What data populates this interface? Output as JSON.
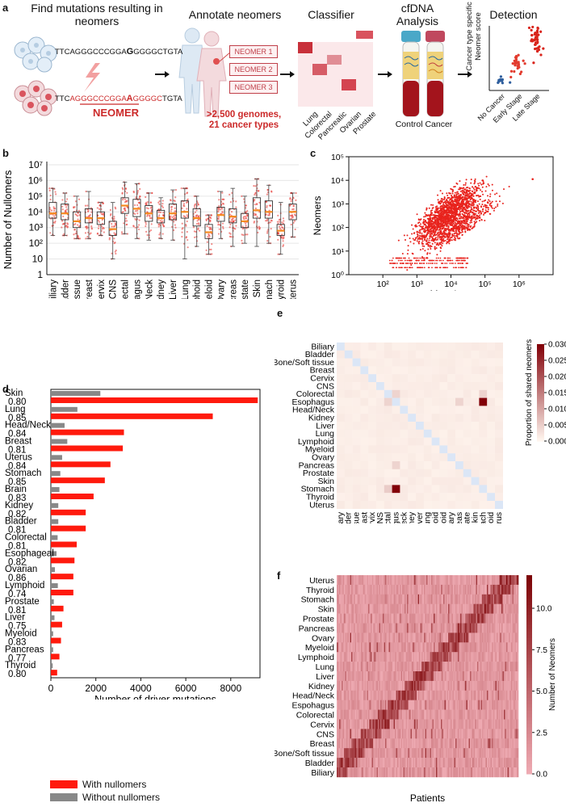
{
  "panel_a": {
    "label": "a",
    "step_find": "Find mutations resulting in neomers",
    "step_annotate": "Annotate neomers",
    "step_classifier": "Classifier",
    "step_cfdna": "cfDNA Analysis",
    "step_detection": "Detection",
    "seq_normal_pre": "TTCAGGGCCCGGA",
    "seq_normal_mut": "G",
    "seq_normal_post": "GGGGCTGTA",
    "seq_tumor_pre": "TTC",
    "seq_tumor_red1": "AGGGCCCGGA",
    "seq_tumor_mut": "A",
    "seq_tumor_red2": "GGGGC",
    "seq_tumor_post": "TGTA",
    "neomer_word": "NEOMER",
    "neomer_boxes": [
      "NEOMER 1",
      "NEOMER 2",
      "NEOMER 3"
    ],
    "genomes_line1": ">2,500 genomes,",
    "genomes_line2": "21 cancer types",
    "classifier_labels": [
      "Lung",
      "Colorectal",
      "Pancreatic",
      "Ovarian",
      "Prostate"
    ],
    "tube_caption": "Control Cancer",
    "detect_ylabel_1": "Cancer type specific",
    "detect_ylabel_2": "Neomer score",
    "detect_groups": [
      "No Cancer",
      "Early Stage",
      "Late Stage"
    ]
  },
  "panel_b": {
    "label": "b",
    "ylabel": "Number of Nullomers",
    "y_ticks": [
      "1",
      "10",
      "10²",
      "10³",
      "10⁴",
      "10⁵",
      "10⁶",
      "10⁷"
    ],
    "chart_data": {
      "type": "box",
      "yscale": "log10",
      "ylim": [
        1,
        10000000
      ],
      "categories": [
        "Biliary",
        "Bladder",
        "Bone/Soft tissue",
        "Breast",
        "Cervix",
        "CNS",
        "Colorectal",
        "Espohagus",
        "Head/Neck",
        "Kidney",
        "Liver",
        "Lung",
        "Lymphoid",
        "Myeloid",
        "Ovary",
        "Pancreas",
        "Prostate",
        "Skin",
        "Stomach",
        "Thyroid",
        "Uterus"
      ],
      "log10_stats": [
        {
          "q1": 3.6,
          "med": 3.9,
          "q3": 4.6,
          "wlo": 2.5,
          "whi": 5.5
        },
        {
          "q1": 3.5,
          "med": 3.9,
          "q3": 4.5,
          "wlo": 2.5,
          "whi": 5.2
        },
        {
          "q1": 3.0,
          "med": 3.4,
          "q3": 4.0,
          "wlo": 2.3,
          "whi": 5.0
        },
        {
          "q1": 3.3,
          "med": 3.6,
          "q3": 4.2,
          "wlo": 2.3,
          "whi": 5.3
        },
        {
          "q1": 3.2,
          "med": 3.6,
          "q3": 4.0,
          "wlo": 2.5,
          "whi": 4.6
        },
        {
          "q1": 2.5,
          "med": 2.9,
          "q3": 3.4,
          "wlo": 1.0,
          "whi": 4.6
        },
        {
          "q1": 3.9,
          "med": 4.4,
          "q3": 4.9,
          "wlo": 2.6,
          "whi": 5.9
        },
        {
          "q1": 3.7,
          "med": 4.2,
          "q3": 4.8,
          "wlo": 2.3,
          "whi": 5.8
        },
        {
          "q1": 3.4,
          "med": 3.9,
          "q3": 4.4,
          "wlo": 2.2,
          "whi": 5.2
        },
        {
          "q1": 3.3,
          "med": 3.6,
          "q3": 4.1,
          "wlo": 2.3,
          "whi": 4.9
        },
        {
          "q1": 3.5,
          "med": 3.9,
          "q3": 4.5,
          "wlo": 2.2,
          "whi": 5.4
        },
        {
          "q1": 3.6,
          "med": 4.0,
          "q3": 4.7,
          "wlo": 1.0,
          "whi": 5.5
        },
        {
          "q1": 3.1,
          "med": 3.6,
          "q3": 4.2,
          "wlo": 1.8,
          "whi": 5.0
        },
        {
          "q1": 2.3,
          "med": 2.7,
          "q3": 3.2,
          "wlo": 1.3,
          "whi": 3.8
        },
        {
          "q1": 3.4,
          "med": 3.8,
          "q3": 4.3,
          "wlo": 2.3,
          "whi": 5.3
        },
        {
          "q1": 3.3,
          "med": 3.7,
          "q3": 4.2,
          "wlo": 1.8,
          "whi": 5.5
        },
        {
          "q1": 3.0,
          "med": 3.4,
          "q3": 3.9,
          "wlo": 2.0,
          "whi": 5.0
        },
        {
          "q1": 3.6,
          "med": 4.1,
          "q3": 4.9,
          "wlo": 1.8,
          "whi": 6.1
        },
        {
          "q1": 3.6,
          "med": 4.0,
          "q3": 4.7,
          "wlo": 2.0,
          "whi": 5.7
        },
        {
          "q1": 2.5,
          "med": 2.8,
          "q3": 3.2,
          "wlo": 1.3,
          "whi": 4.6
        },
        {
          "q1": 3.5,
          "med": 4.0,
          "q3": 4.5,
          "wlo": 2.4,
          "whi": 5.2
        }
      ]
    }
  },
  "panel_c": {
    "label": "c",
    "ylabel": "Neomers",
    "xlabel": "Mutations",
    "x_ticks": [
      "10²",
      "10³",
      "10⁴",
      "10⁵",
      "10⁶"
    ],
    "y_ticks": [
      "10⁰",
      "10¹",
      "10²",
      "10³",
      "10⁴",
      "10⁵"
    ],
    "chart_data": {
      "type": "scatter",
      "xscale": "log10",
      "yscale": "log10",
      "xlim": [
        10,
        10000000
      ],
      "ylim": [
        1,
        100000
      ],
      "color": "#e8231d",
      "clusters": [
        {
          "name": "main",
          "x_log_center": 3.9,
          "x_log_sd": 0.45,
          "slope": 1.0,
          "intercept": -1.3,
          "sd": 0.35,
          "n": 1400
        },
        {
          "name": "lower",
          "x_log_center": 4.2,
          "x_log_sd": 0.5,
          "slope": 0.95,
          "intercept": -2.0,
          "sd": 0.25,
          "n": 500
        }
      ]
    }
  },
  "panel_d": {
    "label": "d",
    "xlabel": "Number of driver mutations",
    "x_ticks": [
      "0",
      "2000",
      "4000",
      "6000",
      "8000"
    ],
    "legend_with": "With nullomers",
    "legend_without": "Without nullomers",
    "chart_data": {
      "type": "bar",
      "orientation": "horizontal",
      "xlim": [
        0,
        9300
      ],
      "categories": [
        "Skin",
        "Lung",
        "Head/Neck",
        "Breast",
        "Uterus",
        "Stomach",
        "Brain",
        "Kidney",
        "Bladder",
        "Colorectal",
        "Esophageal",
        "Ovarian",
        "Lymphoid",
        "Prostate",
        "Liver",
        "Myeloid",
        "Pancreas",
        "Thyroid"
      ],
      "ratios": [
        "0.80",
        "0.85",
        "0.84",
        "0.81",
        "0.84",
        "0.85",
        "0.83",
        "0.82",
        "0.81",
        "0.81",
        "0.82",
        "0.86",
        "0.74",
        "0.81",
        "0.75",
        "0.83",
        "0.77",
        "0.80"
      ],
      "series": [
        {
          "name": "Without nullomers",
          "color": "#888888",
          "values": [
            2200,
            1180,
            610,
            730,
            500,
            420,
            380,
            330,
            330,
            300,
            250,
            180,
            310,
            130,
            160,
            100,
            100,
            80
          ]
        },
        {
          "name": "With nullomers",
          "color": "#ff1a0d",
          "values": [
            9200,
            7200,
            3250,
            3200,
            2650,
            2400,
            1900,
            1550,
            1550,
            1150,
            1050,
            1000,
            1000,
            560,
            500,
            450,
            380,
            280
          ]
        }
      ]
    }
  },
  "panel_e": {
    "label": "e",
    "colorbar_label": "Proportion of shared neomers",
    "colorbar_ticks": [
      "0.030",
      "0.025",
      "0.020",
      "0.015",
      "0.010",
      "0.005",
      "0.000"
    ],
    "chart_data": {
      "type": "heatmap",
      "labels": [
        "Biliary",
        "Bladder",
        "Bone/Soft tissue",
        "Breast",
        "Cervix",
        "CNS",
        "Colorectal",
        "Esophagus",
        "Head/Neck",
        "Kidney",
        "Liver",
        "Lung",
        "Lymphoid",
        "Myeloid",
        "Ovary",
        "Pancreas",
        "Prostate",
        "Skin",
        "Stomach",
        "Thyroid",
        "Uterus"
      ],
      "vmin": 0,
      "vmax": 0.03,
      "diagonal": "excluded",
      "notable": [
        {
          "row": "Esophagus",
          "col": "Stomach",
          "value": 0.03
        },
        {
          "row": "Stomach",
          "col": "Esophagus",
          "value": 0.03
        },
        {
          "row": "Esophagus",
          "col": "Esophagus",
          "value": 0.0
        },
        {
          "row": "Colorectal",
          "col": "Esophagus",
          "value": 0.004
        },
        {
          "row": "Pancreas",
          "col": "Esophagus",
          "value": 0.004
        },
        {
          "row": "Esophagus",
          "col": "Pancreas",
          "value": 0.004
        },
        {
          "row": "Esophagus",
          "col": "Colorectal",
          "value": 0.004
        },
        {
          "row": "Stomach",
          "col": "Colorectal",
          "value": 0.005
        },
        {
          "row": "Colorectal",
          "col": "Stomach",
          "value": 0.004
        }
      ],
      "background": 0.001
    }
  },
  "panel_f": {
    "label": "f",
    "xlabel": "Patients",
    "colorbar_label": "Number of Neomers",
    "colorbar_ticks": [
      "10.0",
      "7.5",
      "5.0",
      "2.5",
      "0.0"
    ],
    "chart_data": {
      "type": "heatmap",
      "rows": [
        "Uterus",
        "Thyroid",
        "Stomach",
        "Skin",
        "Prostate",
        "Pancreas",
        "Ovary",
        "Myeloid",
        "Lymphoid",
        "Lung",
        "Liver",
        "Kidney",
        "Head/Neck",
        "Espohagus",
        "Colorectal",
        "Cervix",
        "CNS",
        "Breast",
        "Bone/Soft tissue",
        "Bladder",
        "Biliary"
      ],
      "vmin": 0,
      "vmax": 12,
      "columns": "patients (unlabeled)"
    }
  }
}
